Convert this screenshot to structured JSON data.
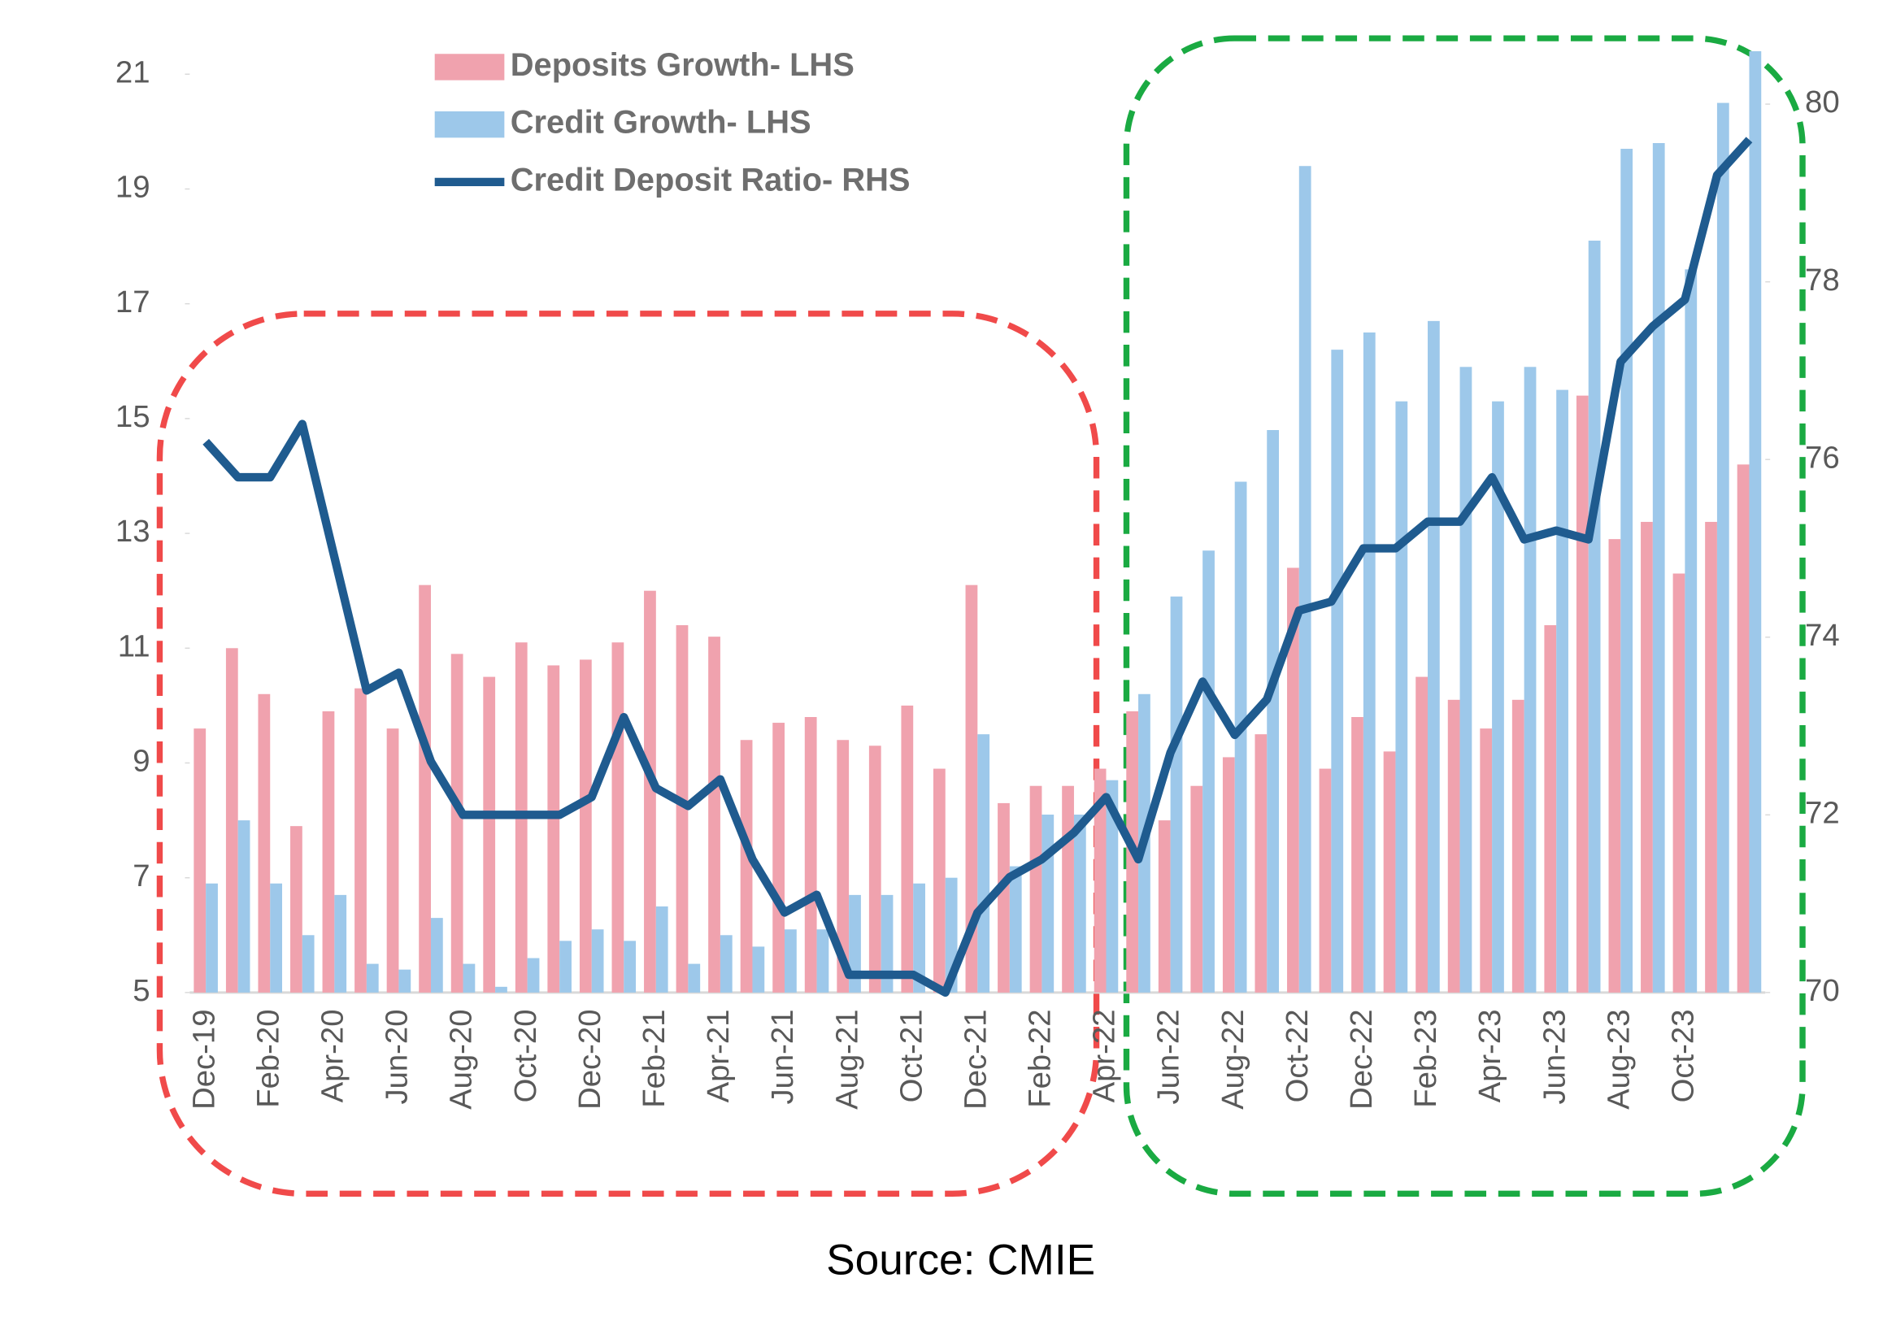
{
  "chart_data": {
    "type": "bar-line",
    "categories": [
      "Dec-19",
      null,
      "Feb-20",
      null,
      "Apr-20",
      null,
      "Jun-20",
      null,
      "Aug-20",
      null,
      "Oct-20",
      null,
      "Dec-20",
      null,
      "Feb-21",
      null,
      "Apr-21",
      null,
      "Jun-21",
      null,
      "Aug-21",
      null,
      "Oct-21",
      null,
      "Dec-21",
      null,
      "Feb-22",
      null,
      "Apr-22",
      null,
      "Jun-22",
      null,
      "Aug-22",
      null,
      "Oct-22",
      null,
      "Dec-22",
      null,
      "Feb-23",
      null,
      "Apr-23",
      null,
      "Jun-23",
      null,
      "Aug-23",
      null,
      "Oct-23",
      null,
      null
    ],
    "series": [
      {
        "name": "Deposits Growth- LHS",
        "color": "#f0a2ae",
        "kind": "bar",
        "values": [
          9.6,
          11.0,
          10.2,
          7.9,
          9.9,
          10.3,
          9.6,
          12.1,
          10.9,
          10.5,
          11.1,
          10.7,
          10.8,
          11.1,
          12.0,
          11.4,
          11.2,
          9.4,
          9.7,
          9.8,
          9.4,
          9.3,
          10.0,
          8.9,
          12.1,
          8.3,
          8.6,
          8.6,
          8.9,
          9.9,
          8.0,
          8.6,
          9.1,
          9.5,
          12.4,
          8.9,
          9.8,
          9.2,
          10.5,
          10.1,
          9.6,
          10.1,
          11.4,
          15.4,
          12.9,
          13.2,
          12.3,
          13.2,
          14.2
        ]
      },
      {
        "name": "Credit Growth- LHS",
        "color": "#9dc8ea",
        "kind": "bar",
        "values": [
          6.9,
          8.0,
          6.9,
          6.0,
          6.7,
          5.5,
          5.4,
          6.3,
          5.5,
          5.1,
          5.6,
          5.9,
          6.1,
          5.9,
          6.5,
          5.5,
          6.0,
          5.8,
          6.1,
          6.1,
          6.7,
          6.7,
          6.9,
          7.0,
          9.5,
          7.2,
          8.1,
          8.1,
          8.7,
          10.2,
          11.9,
          12.7,
          13.9,
          14.8,
          19.4,
          16.2,
          16.5,
          15.3,
          16.7,
          15.9,
          15.3,
          15.9,
          15.5,
          18.1,
          19.7,
          19.8,
          17.6,
          20.5,
          21.4
        ]
      },
      {
        "name": "Credit Deposit Ratio- RHS",
        "color": "#1f5b8f",
        "kind": "line",
        "axis": "y2",
        "values": [
          76.2,
          75.8,
          75.8,
          76.4,
          74.9,
          73.4,
          73.6,
          72.6,
          72.0,
          72.0,
          72.0,
          72.0,
          72.2,
          73.1,
          72.3,
          72.1,
          72.4,
          71.5,
          70.9,
          71.1,
          70.2,
          70.2,
          70.2,
          70.0,
          70.9,
          71.3,
          71.5,
          71.8,
          72.2,
          71.5,
          72.7,
          73.5,
          72.9,
          73.3,
          74.3,
          74.4,
          75.0,
          75.0,
          75.3,
          75.3,
          75.8,
          75.1,
          75.2,
          75.1,
          77.1,
          77.5,
          77.8,
          79.2,
          79.6
        ]
      }
    ],
    "ylim": [
      5,
      21.5
    ],
    "yticks": [
      5,
      7,
      9,
      11,
      13,
      15,
      17,
      19,
      21
    ],
    "y2lim": [
      70,
      80.66
    ],
    "y2ticks": [
      70,
      72,
      74,
      76,
      78,
      80
    ],
    "source": "Source: CMIE"
  }
}
